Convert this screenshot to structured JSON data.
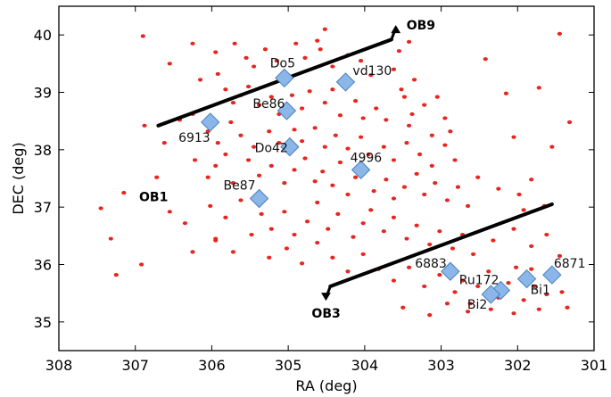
{
  "chart_data": {
    "type": "scatter",
    "title": "",
    "xlabel": "RA (deg)",
    "ylabel": "DEC (deg)",
    "xlim": [
      308,
      301
    ],
    "ylim": [
      34.5,
      40.5
    ],
    "x_inverted": true,
    "grid": false,
    "x_ticks": [
      308,
      307,
      306,
      305,
      304,
      303,
      302,
      301
    ],
    "y_ticks": [
      35,
      36,
      37,
      38,
      39,
      40
    ],
    "colors": {
      "stars": "#e8251f",
      "clusters": "#8ab6e8",
      "cluster_edge": "#4a7fc0",
      "arrows": "#000000"
    },
    "stars": [
      [
        306.9,
        39.98
      ],
      [
        306.55,
        39.5
      ],
      [
        306.25,
        39.85
      ],
      [
        305.95,
        39.7
      ],
      [
        305.7,
        39.85
      ],
      [
        305.55,
        39.6
      ],
      [
        305.45,
        39.45
      ],
      [
        305.3,
        39.75
      ],
      [
        305.15,
        39.55
      ],
      [
        305.05,
        39.35
      ],
      [
        304.9,
        39.85
      ],
      [
        304.78,
        39.6
      ],
      [
        304.62,
        39.9
      ],
      [
        304.52,
        40.1
      ],
      [
        304.58,
        39.75
      ],
      [
        304.42,
        39.45
      ],
      [
        304.22,
        39.65
      ],
      [
        304.05,
        39.55
      ],
      [
        303.92,
        39.3
      ],
      [
        303.62,
        39.4
      ],
      [
        303.55,
        39.72
      ],
      [
        303.42,
        39.88
      ],
      [
        303.35,
        39.22
      ],
      [
        303.52,
        39.05
      ],
      [
        306.15,
        39.22
      ],
      [
        305.92,
        39.32
      ],
      [
        305.82,
        39.05
      ],
      [
        305.62,
        38.95
      ],
      [
        305.52,
        39.1
      ],
      [
        305.72,
        38.82
      ],
      [
        305.38,
        38.78
      ],
      [
        305.22,
        38.92
      ],
      [
        305.12,
        38.62
      ],
      [
        304.95,
        38.95
      ],
      [
        304.82,
        38.72
      ],
      [
        304.72,
        39.02
      ],
      [
        304.52,
        38.82
      ],
      [
        304.42,
        39.05
      ],
      [
        304.32,
        38.6
      ],
      [
        304.12,
        38.85
      ],
      [
        304.02,
        38.55
      ],
      [
        303.85,
        38.72
      ],
      [
        303.72,
        38.52
      ],
      [
        303.48,
        38.92
      ],
      [
        303.38,
        38.62
      ],
      [
        303.22,
        38.78
      ],
      [
        303.05,
        38.92
      ],
      [
        302.95,
        38.55
      ],
      [
        302.88,
        38.32
      ],
      [
        303.12,
        38.25
      ],
      [
        303.42,
        38.42
      ],
      [
        306.42,
        38.52
      ],
      [
        306.25,
        38.62
      ],
      [
        306.05,
        38.32
      ],
      [
        305.92,
        38.12
      ],
      [
        305.75,
        38.48
      ],
      [
        305.62,
        38.25
      ],
      [
        305.45,
        38.05
      ],
      [
        305.25,
        38.32
      ],
      [
        305.12,
        38.12
      ],
      [
        304.92,
        38.35
      ],
      [
        304.82,
        38.15
      ],
      [
        304.65,
        38.38
      ],
      [
        304.52,
        38.05
      ],
      [
        304.38,
        38.25
      ],
      [
        304.22,
        38.02
      ],
      [
        304.05,
        38.22
      ],
      [
        303.95,
        37.92
      ],
      [
        303.75,
        38.05
      ],
      [
        303.62,
        37.82
      ],
      [
        303.45,
        38.12
      ],
      [
        303.28,
        37.92
      ],
      [
        303.12,
        37.72
      ],
      [
        302.95,
        38.08
      ],
      [
        302.82,
        37.82
      ],
      [
        306.22,
        37.82
      ],
      [
        306.05,
        37.52
      ],
      [
        305.95,
        37.72
      ],
      [
        305.82,
        37.92
      ],
      [
        305.72,
        37.42
      ],
      [
        305.52,
        37.82
      ],
      [
        305.38,
        37.55
      ],
      [
        305.22,
        37.72
      ],
      [
        305.05,
        37.42
      ],
      [
        304.92,
        37.65
      ],
      [
        304.78,
        37.85
      ],
      [
        304.65,
        37.45
      ],
      [
        304.55,
        37.62
      ],
      [
        304.42,
        37.38
      ],
      [
        304.32,
        37.78
      ],
      [
        304.22,
        37.22
      ],
      [
        304.12,
        37.52
      ],
      [
        304.02,
        37.72
      ],
      [
        303.88,
        37.28
      ],
      [
        303.72,
        37.48
      ],
      [
        303.62,
        37.15
      ],
      [
        303.48,
        37.35
      ],
      [
        303.32,
        37.58
      ],
      [
        303.22,
        37.22
      ],
      [
        303.08,
        37.42
      ],
      [
        302.92,
        37.12
      ],
      [
        302.78,
        37.35
      ],
      [
        302.65,
        37.02
      ],
      [
        302.52,
        37.52
      ],
      [
        302.25,
        37.32
      ],
      [
        301.98,
        37.22
      ],
      [
        301.82,
        37.48
      ],
      [
        306.02,
        37.02
      ],
      [
        305.82,
        36.82
      ],
      [
        305.62,
        37.12
      ],
      [
        305.35,
        36.88
      ],
      [
        305.22,
        36.62
      ],
      [
        305.05,
        36.92
      ],
      [
        304.92,
        36.52
      ],
      [
        304.75,
        36.75
      ],
      [
        304.62,
        37.08
      ],
      [
        304.48,
        36.62
      ],
      [
        304.35,
        36.88
      ],
      [
        304.15,
        36.48
      ],
      [
        304.02,
        36.72
      ],
      [
        303.92,
        36.95
      ],
      [
        303.75,
        36.58
      ],
      [
        303.62,
        36.82
      ],
      [
        303.45,
        36.45
      ],
      [
        303.32,
        36.68
      ],
      [
        303.15,
        36.35
      ],
      [
        303.02,
        36.58
      ],
      [
        302.85,
        36.28
      ],
      [
        302.72,
        36.52
      ],
      [
        302.58,
        36.18
      ],
      [
        302.32,
        36.42
      ],
      [
        302.05,
        36.62
      ],
      [
        301.82,
        36.32
      ],
      [
        301.62,
        36.52
      ],
      [
        301.45,
        36.15
      ],
      [
        305.95,
        36.42
      ],
      [
        305.72,
        36.22
      ],
      [
        305.48,
        36.52
      ],
      [
        305.25,
        36.12
      ],
      [
        305.02,
        36.28
      ],
      [
        304.82,
        36.02
      ],
      [
        304.62,
        36.38
      ],
      [
        304.42,
        36.12
      ],
      [
        304.22,
        35.88
      ],
      [
        304.02,
        36.18
      ],
      [
        303.82,
        35.92
      ],
      [
        303.62,
        35.72
      ],
      [
        303.42,
        35.95
      ],
      [
        303.22,
        35.62
      ],
      [
        303.02,
        35.82
      ],
      [
        302.82,
        35.52
      ],
      [
        302.72,
        35.72
      ],
      [
        302.62,
        35.32
      ],
      [
        302.52,
        35.62
      ],
      [
        302.38,
        35.88
      ],
      [
        302.25,
        35.42
      ],
      [
        302.12,
        35.68
      ],
      [
        302.02,
        35.95
      ],
      [
        301.92,
        35.38
      ],
      [
        301.78,
        35.62
      ],
      [
        301.72,
        35.22
      ],
      [
        301.62,
        35.48
      ],
      [
        301.52,
        35.82
      ],
      [
        301.42,
        35.52
      ],
      [
        301.35,
        35.25
      ],
      [
        301.82,
        35.92
      ],
      [
        302.05,
        35.15
      ],
      [
        302.35,
        35.22
      ],
      [
        302.65,
        35.18
      ],
      [
        302.92,
        35.32
      ],
      [
        303.15,
        35.12
      ],
      [
        303.5,
        35.25
      ],
      [
        307.45,
        36.98
      ],
      [
        307.32,
        36.45
      ],
      [
        307.25,
        35.82
      ],
      [
        306.92,
        36.0
      ],
      [
        306.25,
        36.22
      ],
      [
        305.95,
        36.45
      ],
      [
        301.45,
        40.02
      ],
      [
        301.32,
        38.48
      ],
      [
        301.55,
        38.05
      ],
      [
        301.72,
        39.08
      ],
      [
        302.15,
        38.98
      ],
      [
        302.42,
        39.58
      ],
      [
        302.05,
        38.22
      ],
      [
        301.65,
        37.02
      ],
      [
        301.92,
        36.95
      ],
      [
        306.88,
        38.42
      ],
      [
        306.62,
        38.12
      ],
      [
        306.72,
        37.52
      ],
      [
        307.15,
        37.25
      ],
      [
        306.35,
        36.72
      ],
      [
        306.55,
        36.92
      ]
    ],
    "clusters": [
      {
        "name": "Do5",
        "ra": 305.05,
        "dec": 39.25,
        "label": "Do5"
      },
      {
        "name": "vd130",
        "ra": 304.25,
        "dec": 39.18,
        "label": "vd130"
      },
      {
        "name": "Be86",
        "ra": 305.02,
        "dec": 38.68,
        "label": "Be86"
      },
      {
        "name": "6913",
        "ra": 306.02,
        "dec": 38.48,
        "label": "6913"
      },
      {
        "name": "Do42",
        "ra": 304.98,
        "dec": 38.05,
        "label": "Do42"
      },
      {
        "name": "4996",
        "ra": 304.05,
        "dec": 37.65,
        "label": "4996"
      },
      {
        "name": "Be87",
        "ra": 305.38,
        "dec": 37.15,
        "label": "Be87"
      },
      {
        "name": "6883",
        "ra": 302.88,
        "dec": 35.88,
        "label": "6883"
      },
      {
        "name": "Ru172",
        "ra": 302.22,
        "dec": 35.55,
        "label": "Ru172"
      },
      {
        "name": "Bi2",
        "ra": 302.35,
        "dec": 35.48,
        "label": "Bi2"
      },
      {
        "name": "Bi1",
        "ra": 301.88,
        "dec": 35.75,
        "label": "Bi1"
      },
      {
        "name": "6871",
        "ra": 301.55,
        "dec": 35.82,
        "label": "6871"
      }
    ],
    "associations": [
      {
        "name": "OB9",
        "label": "OB9",
        "line": [
          [
            306.7,
            38.42
          ],
          [
            303.65,
            39.92
          ]
        ]
      },
      {
        "name": "OB3",
        "label": "OB3",
        "line": [
          [
            301.55,
            37.05
          ],
          [
            304.45,
            35.62
          ]
        ]
      },
      {
        "name": "OB1",
        "label": "OB1",
        "at": [
          306.95,
          37.1
        ]
      }
    ]
  }
}
